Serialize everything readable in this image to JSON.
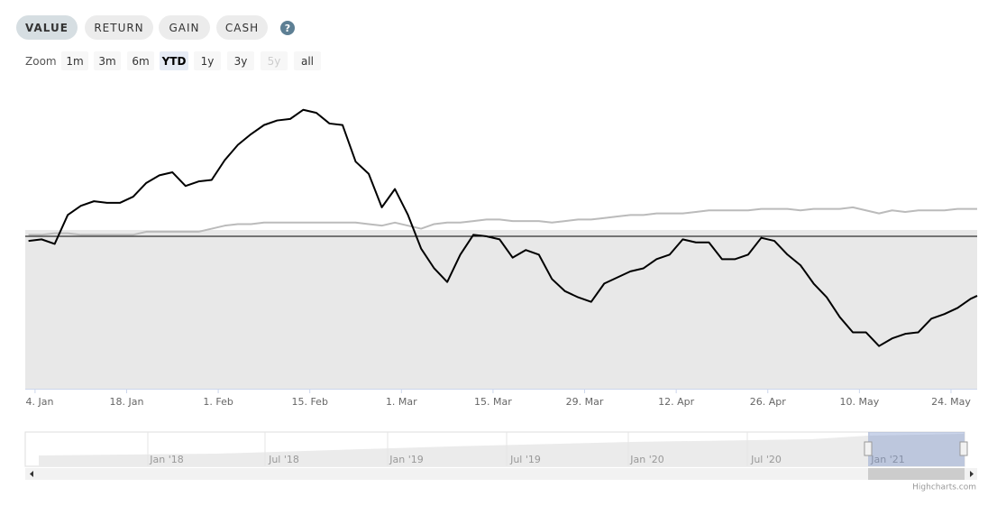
{
  "ui": {
    "tabs": [
      "VALUE",
      "RETURN",
      "GAIN",
      "CASH"
    ],
    "selected_tab": "VALUE",
    "help": "?",
    "zoom_label": "Zoom",
    "ranges": [
      "1m",
      "3m",
      "6m",
      "YTD",
      "1y",
      "3y",
      "5y",
      "all"
    ],
    "selected_range": "YTD",
    "disabled_range": "5y",
    "credit": "Highcharts.com"
  },
  "navigator": {
    "labels": [
      "Jan '18",
      "Jul '18",
      "Jan '19",
      "Jul '19",
      "Jan '20",
      "Jul '20",
      "Jan '21"
    ]
  },
  "chart_data": {
    "type": "line",
    "x": [
      3,
      5,
      7,
      9,
      11,
      13,
      15,
      17,
      19,
      21,
      23,
      25,
      27,
      29,
      31,
      33,
      35,
      37,
      39,
      41,
      43,
      45,
      47,
      49,
      51,
      53,
      55,
      57,
      59,
      61,
      63,
      65,
      67,
      69,
      71,
      73,
      75,
      77,
      79,
      81,
      83,
      85,
      87,
      89,
      91,
      93,
      95,
      97,
      99,
      101,
      103,
      105,
      107,
      109,
      111,
      113,
      115,
      117,
      119,
      121,
      123,
      125,
      127,
      129,
      131,
      133,
      135,
      137,
      139,
      141,
      143,
      145,
      147,
      148
    ],
    "xlim": [
      2.5,
      148
    ],
    "xticks": [
      {
        "value": 4,
        "label": "4. Jan"
      },
      {
        "value": 18,
        "label": "18. Jan"
      },
      {
        "value": 32,
        "label": "1. Feb"
      },
      {
        "value": 46,
        "label": "15. Feb"
      },
      {
        "value": 60,
        "label": "1. Mar"
      },
      {
        "value": 74,
        "label": "15. Mar"
      },
      {
        "value": 88,
        "label": "29. Mar"
      },
      {
        "value": 102,
        "label": "12. Apr"
      },
      {
        "value": 116,
        "label": "26. Apr"
      },
      {
        "value": 130,
        "label": "10. May"
      },
      {
        "value": 144,
        "label": "24. May"
      }
    ],
    "ylim": [
      -100,
      100
    ],
    "series": [
      {
        "color": "#bbbbbb",
        "values": [
          1,
          1,
          2,
          2,
          1,
          1,
          1,
          1,
          1,
          3,
          3,
          3,
          3,
          3,
          5,
          7,
          8,
          8,
          9,
          9,
          9,
          9,
          9,
          9,
          9,
          9,
          8,
          7,
          9,
          7,
          5,
          8,
          9,
          9,
          10,
          11,
          11,
          10,
          10,
          10,
          9,
          10,
          11,
          11,
          12,
          13,
          14,
          14,
          15,
          15,
          15,
          16,
          17,
          17,
          17,
          17,
          18,
          18,
          18,
          17,
          18,
          18,
          18,
          19,
          17,
          15,
          17,
          16,
          17,
          17,
          17,
          18,
          18,
          18
        ]
      },
      {
        "color": "#000000",
        "values": [
          -3,
          -2,
          -5,
          14,
          20,
          23,
          22,
          22,
          26,
          35,
          40,
          42,
          33,
          36,
          37,
          50,
          60,
          67,
          73,
          76,
          77,
          83,
          81,
          74,
          73,
          49,
          41,
          19,
          31,
          14,
          -8,
          -21,
          -30,
          -12,
          1,
          0,
          -2,
          -14,
          -9,
          -12,
          -28,
          -36,
          -40,
          -43,
          -31,
          -27,
          -23,
          -21,
          -15,
          -12,
          -2,
          -4,
          -4,
          -15,
          -15,
          -12,
          -1,
          -3,
          -12,
          -19,
          -31,
          -40,
          -53,
          -63,
          -63,
          -72,
          -67,
          -64,
          -63,
          -54,
          -51,
          -47,
          -41,
          -39
        ]
      }
    ]
  }
}
